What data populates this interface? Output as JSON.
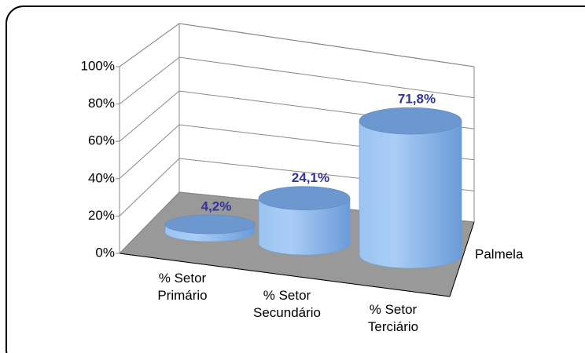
{
  "chart_data": {
    "type": "cylinder-bar",
    "categories": [
      "% Setor Primário",
      "% Setor Secundário",
      "% Setor Terciário"
    ],
    "series": [
      {
        "name": "Palmela",
        "color": "#7fa9e0",
        "values": [
          4.2,
          24.1,
          71.8
        ],
        "value_labels": [
          "4,2%",
          "24,1%",
          "71,8%"
        ]
      }
    ],
    "ylim": [
      0,
      100
    ],
    "yticks": [
      {
        "value": 0,
        "label": "0%"
      },
      {
        "value": 20,
        "label": "20%"
      },
      {
        "value": 40,
        "label": "40%"
      },
      {
        "value": 60,
        "label": "60%"
      },
      {
        "value": 80,
        "label": "80%"
      },
      {
        "value": 100,
        "label": "100%"
      }
    ],
    "grid": true
  }
}
